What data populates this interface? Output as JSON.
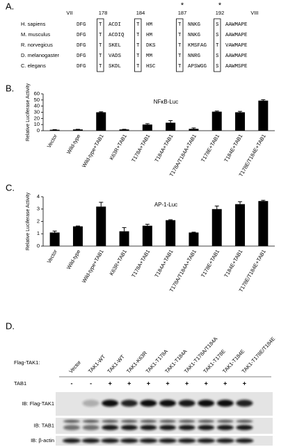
{
  "panel_labels": [
    "A.",
    "B.",
    "C.",
    "D."
  ],
  "alignment": {
    "column_labels": [
      "VII",
      "178",
      "184",
      "187",
      "192",
      "VIII"
    ],
    "asterisks": [
      "*",
      "*"
    ],
    "rows": [
      {
        "species": "H. sapiens",
        "segments": [
          "DFG",
          "T",
          "ACDI",
          "T",
          "HM",
          "T",
          "NNKG",
          "S",
          "AAWMAPE"
        ]
      },
      {
        "species": "M. musculus",
        "segments": [
          "DFG",
          "T",
          "ACDIQ",
          "T",
          "HM",
          "T",
          "NNKG",
          "S",
          "AAWMAPE"
        ]
      },
      {
        "species": "R. norvegicus",
        "segments": [
          "DFG",
          "T",
          "SKEL",
          "T",
          "DKS",
          "T",
          "KMSFAG",
          "T",
          "VAWMAPE"
        ]
      },
      {
        "species": "D. melanogaster",
        "segments": [
          "DFG",
          "T",
          "VADS",
          "T",
          "MM",
          "T",
          "NNRG",
          "S",
          "AAWMAPE"
        ]
      },
      {
        "species": "C. elegans",
        "segments": [
          "DFG",
          "T",
          "SKDL",
          "T",
          "HSC",
          "T",
          "APSWGG",
          "S",
          "AAWMSPE"
        ]
      }
    ]
  },
  "chart_data": [
    {
      "type": "bar",
      "title": "NFκB-Luc",
      "y_label": "Relative Luciferase Activity",
      "categories": [
        "Vector",
        "Wild-type",
        "Wild-type+TAB1",
        "K63R+TAB1",
        "T178A+TAB1",
        "T184A+TAB1",
        "T178A/T184A+TAB1",
        "T178E+TAB1",
        "T184E+TAB1",
        "T178E/T184E+TAB1"
      ],
      "values": [
        1.5,
        2,
        30,
        2,
        10,
        13,
        3,
        31,
        30,
        49
      ],
      "errors": [
        0.3,
        0.3,
        0.8,
        0.3,
        1.5,
        3.5,
        1.5,
        1,
        1.5,
        1.5
      ],
      "color": "#000000",
      "ylim": [
        0,
        60
      ],
      "yticks": [
        0,
        10,
        20,
        30,
        40,
        50,
        60
      ]
    },
    {
      "type": "bar",
      "title": "AP-1-Luc",
      "y_label": "Relative Luciferase Activity",
      "categories": [
        "Vector",
        "Wild-type",
        "Wild-type+TAB1",
        "K63R+TAB1",
        "T178A+TAB1",
        "T184A+TAB1",
        "T178A/T184A+TAB1",
        "T178E+TAB1",
        "T184E+TAB1",
        "T178E/T184E+TAB1"
      ],
      "values": [
        1.1,
        1.6,
        3.2,
        1.2,
        1.65,
        2.1,
        1.1,
        3.0,
        3.4,
        3.65
      ],
      "errors": [
        0.12,
        0.03,
        0.35,
        0.3,
        0.12,
        0.04,
        0.03,
        0.25,
        0.2,
        0.06
      ],
      "color": "#000000",
      "ylim": [
        0,
        4
      ],
      "yticks": [
        0,
        1,
        2,
        3,
        4
      ]
    }
  ],
  "blot": {
    "construct_label": "Flag-TAK1:",
    "lanes": [
      "Vector",
      "TAK1-WT",
      "TAK1-WT",
      "TAK1-K63R",
      "TAK1-T178A",
      "TAK1-T184A",
      "TAK1-T178A/T184A",
      "TAK1-T178E",
      "TAK1-T184E",
      "TAK1-T178E/T184E"
    ],
    "tab1_label": "TAB1",
    "tab1": [
      "-",
      "-",
      "+",
      "+",
      "+",
      "+",
      "+",
      "+",
      "+",
      "+"
    ],
    "panels": [
      "IB: Flag-TAK1",
      "IB: TAB1",
      "IB: β-actin"
    ]
  }
}
